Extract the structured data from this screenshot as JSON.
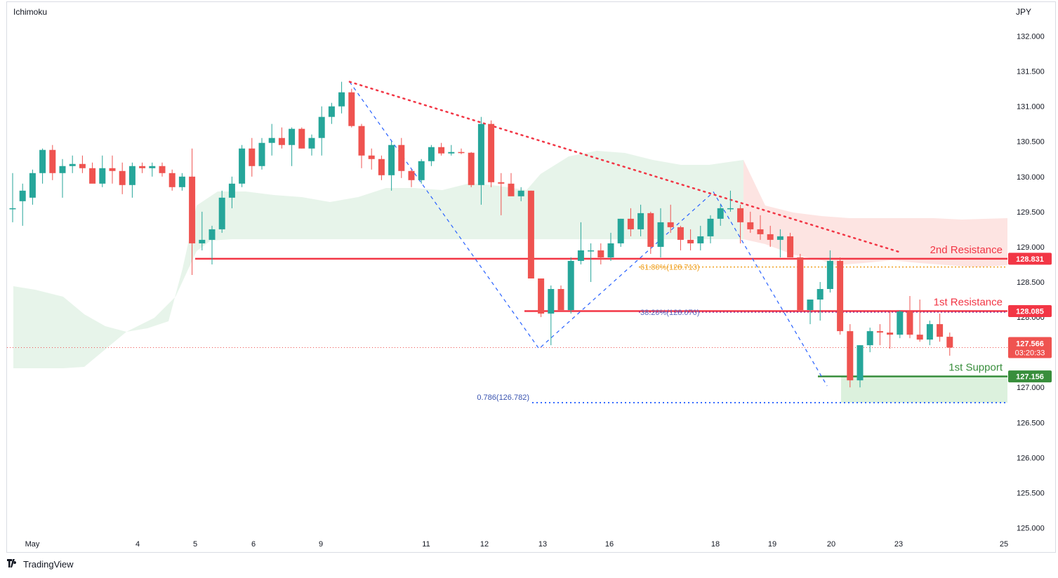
{
  "header": {
    "indicator_label": "Ichimoku",
    "currency": "JPY"
  },
  "footer": {
    "brand": "TradingView",
    "brand_icon": "tradingview-logo-icon"
  },
  "colors": {
    "up": "#26a69a",
    "down": "#ef5350",
    "resistance": "#f23645",
    "support": "#388e3c",
    "fib_dashed": "#2962ff",
    "fib_orange": "#f0a020",
    "cloud_green": "#e3f2e6",
    "cloud_red": "#fde1df"
  },
  "price_axis": {
    "ticks": [
      "132.000",
      "131.500",
      "131.000",
      "130.500",
      "130.000",
      "129.500",
      "129.000",
      "128.500",
      "128.000",
      "127.500",
      "127.000",
      "126.500",
      "126.000",
      "125.500",
      "125.000"
    ]
  },
  "time_axis": {
    "labels": [
      "May",
      "4",
      "5",
      "6",
      "9",
      "11",
      "12",
      "13",
      "16",
      "18",
      "19",
      "20",
      "23",
      "25"
    ]
  },
  "levels": {
    "r2": {
      "label": "2nd Resistance",
      "price": "128.831"
    },
    "r1": {
      "label": "1st Resistance",
      "price": "128.085"
    },
    "s1": {
      "label": "1st Support",
      "price": "127.156"
    },
    "current": {
      "price": "127.566",
      "countdown": "03:20:33"
    }
  },
  "fib_labels": {
    "f618": "61.80%(128.713)",
    "f382": "38.20%(128.070)",
    "f786": "0.786(126.782)"
  },
  "chart_data": {
    "type": "candlestick",
    "symbol_currency": "JPY",
    "ylim": [
      124.9,
      132.2
    ],
    "series": [
      {
        "o": 129.55,
        "h": 130.05,
        "l": 129.35,
        "c": 129.55
      },
      {
        "o": 129.65,
        "h": 129.9,
        "l": 129.3,
        "c": 129.8
      },
      {
        "o": 129.7,
        "h": 130.1,
        "l": 129.6,
        "c": 130.05
      },
      {
        "o": 130.05,
        "h": 130.4,
        "l": 129.9,
        "c": 130.38
      },
      {
        "o": 130.38,
        "h": 130.45,
        "l": 129.95,
        "c": 130.05
      },
      {
        "o": 130.05,
        "h": 130.25,
        "l": 129.7,
        "c": 130.15
      },
      {
        "o": 130.15,
        "h": 130.3,
        "l": 130.05,
        "c": 130.18
      },
      {
        "o": 130.18,
        "h": 130.3,
        "l": 130.05,
        "c": 130.12
      },
      {
        "o": 130.12,
        "h": 130.2,
        "l": 129.95,
        "c": 129.9
      },
      {
        "o": 129.9,
        "h": 130.3,
        "l": 129.85,
        "c": 130.12
      },
      {
        "o": 130.12,
        "h": 130.3,
        "l": 129.9,
        "c": 130.08
      },
      {
        "o": 130.08,
        "h": 130.2,
        "l": 129.75,
        "c": 129.88
      },
      {
        "o": 129.88,
        "h": 130.2,
        "l": 129.7,
        "c": 130.15
      },
      {
        "o": 130.15,
        "h": 130.2,
        "l": 130.05,
        "c": 130.12
      },
      {
        "o": 130.12,
        "h": 130.2,
        "l": 130.0,
        "c": 130.15
      },
      {
        "o": 130.15,
        "h": 130.2,
        "l": 130.0,
        "c": 130.05
      },
      {
        "o": 130.05,
        "h": 130.1,
        "l": 129.8,
        "c": 129.85
      },
      {
        "o": 129.85,
        "h": 130.05,
        "l": 129.8,
        "c": 130.0
      },
      {
        "o": 130.0,
        "h": 130.4,
        "l": 128.6,
        "c": 129.05
      },
      {
        "o": 129.05,
        "h": 129.5,
        "l": 128.95,
        "c": 129.1
      },
      {
        "o": 129.1,
        "h": 129.3,
        "l": 128.75,
        "c": 129.25
      },
      {
        "o": 129.25,
        "h": 129.8,
        "l": 129.2,
        "c": 129.7
      },
      {
        "o": 129.7,
        "h": 130.0,
        "l": 129.55,
        "c": 129.9
      },
      {
        "o": 129.9,
        "h": 130.45,
        "l": 129.85,
        "c": 130.4
      },
      {
        "o": 130.4,
        "h": 130.55,
        "l": 130.0,
        "c": 130.15
      },
      {
        "o": 130.15,
        "h": 130.55,
        "l": 130.1,
        "c": 130.48
      },
      {
        "o": 130.48,
        "h": 130.75,
        "l": 130.3,
        "c": 130.55
      },
      {
        "o": 130.55,
        "h": 130.7,
        "l": 130.4,
        "c": 130.45
      },
      {
        "o": 130.45,
        "h": 130.7,
        "l": 130.15,
        "c": 130.68
      },
      {
        "o": 130.68,
        "h": 130.7,
        "l": 130.4,
        "c": 130.4
      },
      {
        "o": 130.4,
        "h": 130.6,
        "l": 130.3,
        "c": 130.55
      },
      {
        "o": 130.55,
        "h": 131.0,
        "l": 130.3,
        "c": 130.85
      },
      {
        "o": 130.85,
        "h": 131.05,
        "l": 130.75,
        "c": 131.0
      },
      {
        "o": 131.0,
        "h": 131.35,
        "l": 130.9,
        "c": 131.2
      },
      {
        "o": 131.2,
        "h": 131.25,
        "l": 130.7,
        "c": 130.72
      },
      {
        "o": 130.72,
        "h": 130.75,
        "l": 130.12,
        "c": 130.3
      },
      {
        "o": 130.3,
        "h": 130.4,
        "l": 130.1,
        "c": 130.25
      },
      {
        "o": 130.25,
        "h": 130.3,
        "l": 129.95,
        "c": 130.02
      },
      {
        "o": 130.02,
        "h": 130.5,
        "l": 129.8,
        "c": 130.45
      },
      {
        "o": 130.45,
        "h": 130.55,
        "l": 129.98,
        "c": 130.08
      },
      {
        "o": 130.08,
        "h": 130.1,
        "l": 129.85,
        "c": 129.95
      },
      {
        "o": 129.95,
        "h": 130.25,
        "l": 129.9,
        "c": 130.22
      },
      {
        "o": 130.22,
        "h": 130.45,
        "l": 130.15,
        "c": 130.42
      },
      {
        "o": 130.42,
        "h": 130.48,
        "l": 130.3,
        "c": 130.33
      },
      {
        "o": 130.33,
        "h": 130.45,
        "l": 130.3,
        "c": 130.35
      },
      {
        "o": 130.35,
        "h": 130.4,
        "l": 130.32,
        "c": 130.34
      },
      {
        "o": 130.34,
        "h": 130.35,
        "l": 129.85,
        "c": 129.88
      },
      {
        "o": 129.88,
        "h": 130.85,
        "l": 129.6,
        "c": 130.75
      },
      {
        "o": 130.75,
        "h": 130.8,
        "l": 129.85,
        "c": 129.92
      },
      {
        "o": 129.92,
        "h": 130.05,
        "l": 129.45,
        "c": 129.9
      },
      {
        "o": 129.9,
        "h": 130.05,
        "l": 129.75,
        "c": 129.72
      },
      {
        "o": 129.72,
        "h": 129.85,
        "l": 129.65,
        "c": 129.8
      },
      {
        "o": 129.8,
        "h": 129.8,
        "l": 128.55,
        "c": 128.55
      },
      {
        "o": 128.55,
        "h": 128.5,
        "l": 128.0,
        "c": 128.05
      },
      {
        "o": 128.05,
        "h": 128.45,
        "l": 127.6,
        "c": 128.4
      },
      {
        "o": 128.4,
        "h": 128.45,
        "l": 128.1,
        "c": 128.1
      },
      {
        "o": 128.1,
        "h": 128.85,
        "l": 128.05,
        "c": 128.8
      },
      {
        "o": 128.8,
        "h": 129.35,
        "l": 128.75,
        "c": 128.95
      },
      {
        "o": 128.95,
        "h": 129.05,
        "l": 128.5,
        "c": 128.95
      },
      {
        "o": 128.95,
        "h": 129.05,
        "l": 128.75,
        "c": 128.85
      },
      {
        "o": 128.85,
        "h": 129.2,
        "l": 128.8,
        "c": 129.05
      },
      {
        "o": 129.05,
        "h": 129.4,
        "l": 129.0,
        "c": 129.4
      },
      {
        "o": 129.4,
        "h": 129.55,
        "l": 129.15,
        "c": 129.25
      },
      {
        "o": 129.25,
        "h": 129.6,
        "l": 129.15,
        "c": 129.48
      },
      {
        "o": 129.48,
        "h": 129.5,
        "l": 128.9,
        "c": 129.0
      },
      {
        "o": 129.0,
        "h": 129.55,
        "l": 128.85,
        "c": 129.35
      },
      {
        "o": 129.35,
        "h": 129.6,
        "l": 129.2,
        "c": 129.28
      },
      {
        "o": 129.28,
        "h": 129.3,
        "l": 128.95,
        "c": 129.1
      },
      {
        "o": 129.1,
        "h": 129.25,
        "l": 128.95,
        "c": 129.05
      },
      {
        "o": 129.05,
        "h": 129.3,
        "l": 128.95,
        "c": 129.15
      },
      {
        "o": 129.15,
        "h": 129.45,
        "l": 129.05,
        "c": 129.4
      },
      {
        "o": 129.4,
        "h": 129.6,
        "l": 129.3,
        "c": 129.55
      },
      {
        "o": 129.55,
        "h": 129.8,
        "l": 129.5,
        "c": 129.55
      },
      {
        "o": 129.55,
        "h": 129.6,
        "l": 129.05,
        "c": 129.35
      },
      {
        "o": 129.35,
        "h": 129.5,
        "l": 129.2,
        "c": 129.25
      },
      {
        "o": 129.25,
        "h": 129.45,
        "l": 129.1,
        "c": 129.18
      },
      {
        "o": 129.18,
        "h": 129.3,
        "l": 129.0,
        "c": 129.1
      },
      {
        "o": 129.1,
        "h": 129.25,
        "l": 128.85,
        "c": 129.15
      },
      {
        "o": 129.15,
        "h": 129.2,
        "l": 128.85,
        "c": 128.85
      },
      {
        "o": 128.85,
        "h": 128.9,
        "l": 128.1,
        "c": 128.1
      },
      {
        "o": 128.1,
        "h": 128.2,
        "l": 127.9,
        "c": 128.25
      },
      {
        "o": 128.25,
        "h": 128.5,
        "l": 127.95,
        "c": 128.4
      },
      {
        "o": 128.4,
        "h": 128.95,
        "l": 128.35,
        "c": 128.8
      },
      {
        "o": 128.8,
        "h": 128.85,
        "l": 127.75,
        "c": 127.8
      },
      {
        "o": 127.8,
        "h": 127.9,
        "l": 127.0,
        "c": 127.1
      },
      {
        "o": 127.1,
        "h": 127.6,
        "l": 127.0,
        "c": 127.6
      },
      {
        "o": 127.6,
        "h": 127.85,
        "l": 127.5,
        "c": 127.8
      },
      {
        "o": 127.8,
        "h": 127.9,
        "l": 127.6,
        "c": 127.78
      },
      {
        "o": 127.78,
        "h": 128.1,
        "l": 127.55,
        "c": 127.75
      },
      {
        "o": 127.75,
        "h": 128.1,
        "l": 127.7,
        "c": 128.08
      },
      {
        "o": 128.08,
        "h": 128.3,
        "l": 127.7,
        "c": 127.75
      },
      {
        "o": 127.75,
        "h": 128.25,
        "l": 127.65,
        "c": 127.68
      },
      {
        "o": 127.68,
        "h": 127.95,
        "l": 127.6,
        "c": 127.9
      },
      {
        "o": 127.9,
        "h": 128.05,
        "l": 127.65,
        "c": 127.72
      },
      {
        "o": 127.72,
        "h": 127.78,
        "l": 127.45,
        "c": 127.566
      }
    ],
    "horizontal_lines": [
      {
        "name": "2nd Resistance",
        "price": 128.831
      },
      {
        "name": "1st Resistance",
        "price": 128.085
      },
      {
        "name": "1st Support",
        "price": 127.156
      }
    ],
    "fibonacci": [
      {
        "label": "61.80%(128.713)",
        "price": 128.713
      },
      {
        "label": "38.20%(128.070)",
        "price": 128.07
      },
      {
        "label": "0.786(126.782)",
        "price": 126.782
      }
    ],
    "trendline_points": [
      [
        131.35
      ],
      [
        129.78
      ],
      [
        128.93
      ]
    ],
    "current_price": 127.566,
    "grid": false,
    "legend": "none"
  }
}
